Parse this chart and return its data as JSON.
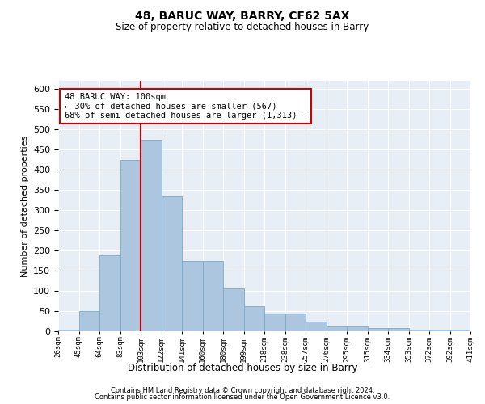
{
  "title": "48, BARUC WAY, BARRY, CF62 5AX",
  "subtitle": "Size of property relative to detached houses in Barry",
  "xlabel": "Distribution of detached houses by size in Barry",
  "ylabel": "Number of detached properties",
  "bar_values": [
    5,
    50,
    188,
    425,
    474,
    335,
    175,
    175,
    107,
    62,
    45,
    45,
    25,
    12,
    12,
    8,
    8,
    5,
    5,
    5
  ],
  "bar_labels": [
    "26sqm",
    "45sqm",
    "64sqm",
    "83sqm",
    "103sqm",
    "122sqm",
    "141sqm",
    "160sqm",
    "180sqm",
    "199sqm",
    "218sqm",
    "238sqm",
    "257sqm",
    "276sqm",
    "295sqm",
    "315sqm",
    "334sqm",
    "353sqm",
    "372sqm",
    "392sqm",
    "411sqm"
  ],
  "bar_color": "#adc6e0",
  "bar_edge_color": "#7aaac8",
  "vline_color": "#cc0000",
  "annotation_text": "48 BARUC WAY: 100sqm\n← 30% of detached houses are smaller (567)\n68% of semi-detached houses are larger (1,313) →",
  "annotation_box_color": "#ffffff",
  "annotation_box_edge": "#cc0000",
  "ylim": [
    0,
    620
  ],
  "yticks": [
    0,
    50,
    100,
    150,
    200,
    250,
    300,
    350,
    400,
    450,
    500,
    550,
    600
  ],
  "bg_color": "#e8eef5",
  "grid_color": "#ffffff",
  "footer1": "Contains HM Land Registry data © Crown copyright and database right 2024.",
  "footer2": "Contains public sector information licensed under the Open Government Licence v3.0."
}
